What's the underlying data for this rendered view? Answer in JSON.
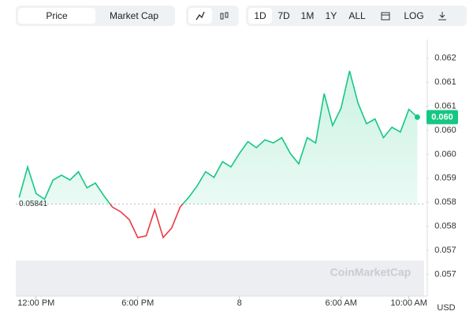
{
  "toolbar": {
    "tabs": [
      "Price",
      "Market Cap"
    ],
    "ranges": [
      "1D",
      "7D",
      "1M",
      "1Y",
      "ALL"
    ],
    "log": "LOG"
  },
  "chart_data": {
    "type": "line",
    "x": [
      11,
      11.5,
      12,
      12.5,
      13,
      13.5,
      14,
      14.5,
      15,
      15.5,
      16,
      16.5,
      17,
      17.5,
      18,
      18.5,
      19,
      19.5,
      20,
      20.5,
      21,
      21.5,
      22,
      22.5,
      23,
      23.5,
      24,
      24.5,
      25,
      25.5,
      26,
      26.5,
      27,
      27.5,
      28,
      28.5,
      29,
      29.5,
      30,
      30.5,
      31,
      31.5,
      32,
      32.5,
      33,
      33.5,
      34,
      34.5
    ],
    "values": [
      0.05856,
      0.05926,
      0.05865,
      0.05852,
      0.05896,
      0.05907,
      0.05896,
      0.05915,
      0.05878,
      0.05889,
      0.0586,
      0.05834,
      0.05823,
      0.05805,
      0.05764,
      0.05768,
      0.05828,
      0.05764,
      0.05786,
      0.05834,
      0.05856,
      0.05882,
      0.05915,
      0.05902,
      0.05938,
      0.05926,
      0.05957,
      0.05984,
      0.0597,
      0.05988,
      0.05981,
      0.05993,
      0.05957,
      0.05933,
      0.05993,
      0.05981,
      0.06094,
      0.06021,
      0.06061,
      0.06146,
      0.06072,
      0.06025,
      0.06036,
      0.05993,
      0.06017,
      0.06006,
      0.06058,
      0.0604
    ],
    "colors": {
      "up": "#16c784",
      "down": "#ea3943"
    },
    "reference": 0.05841,
    "price_tag": {
      "value": 0.0604,
      "label": "0.060"
    },
    "xlim": [
      10.8,
      34.9
    ],
    "ylim": [
      0.0563,
      0.062
    ],
    "xticks": [
      {
        "value": 12,
        "label": "12:00 PM"
      },
      {
        "value": 18,
        "label": "6:00 PM"
      },
      {
        "value": 24,
        "label": "8"
      },
      {
        "value": 30,
        "label": "6:00 AM"
      },
      {
        "value": 34,
        "label": "10:00 AM"
      }
    ],
    "yticks": [
      {
        "value": 0.0568,
        "label": "0.057"
      },
      {
        "value": 0.05735,
        "label": "0.057"
      },
      {
        "value": 0.0579,
        "label": "0.058"
      },
      {
        "value": 0.05845,
        "label": "0.058"
      },
      {
        "value": 0.059,
        "label": "0.059"
      },
      {
        "value": 0.05955,
        "label": "0.060"
      },
      {
        "value": 0.0601,
        "label": "0.060"
      },
      {
        "value": 0.06065,
        "label": "0.061"
      },
      {
        "value": 0.0612,
        "label": "0.061"
      },
      {
        "value": 0.06175,
        "label": "0.062"
      }
    ],
    "y_unit": "USD",
    "watermark": "CoinMarketCap"
  }
}
